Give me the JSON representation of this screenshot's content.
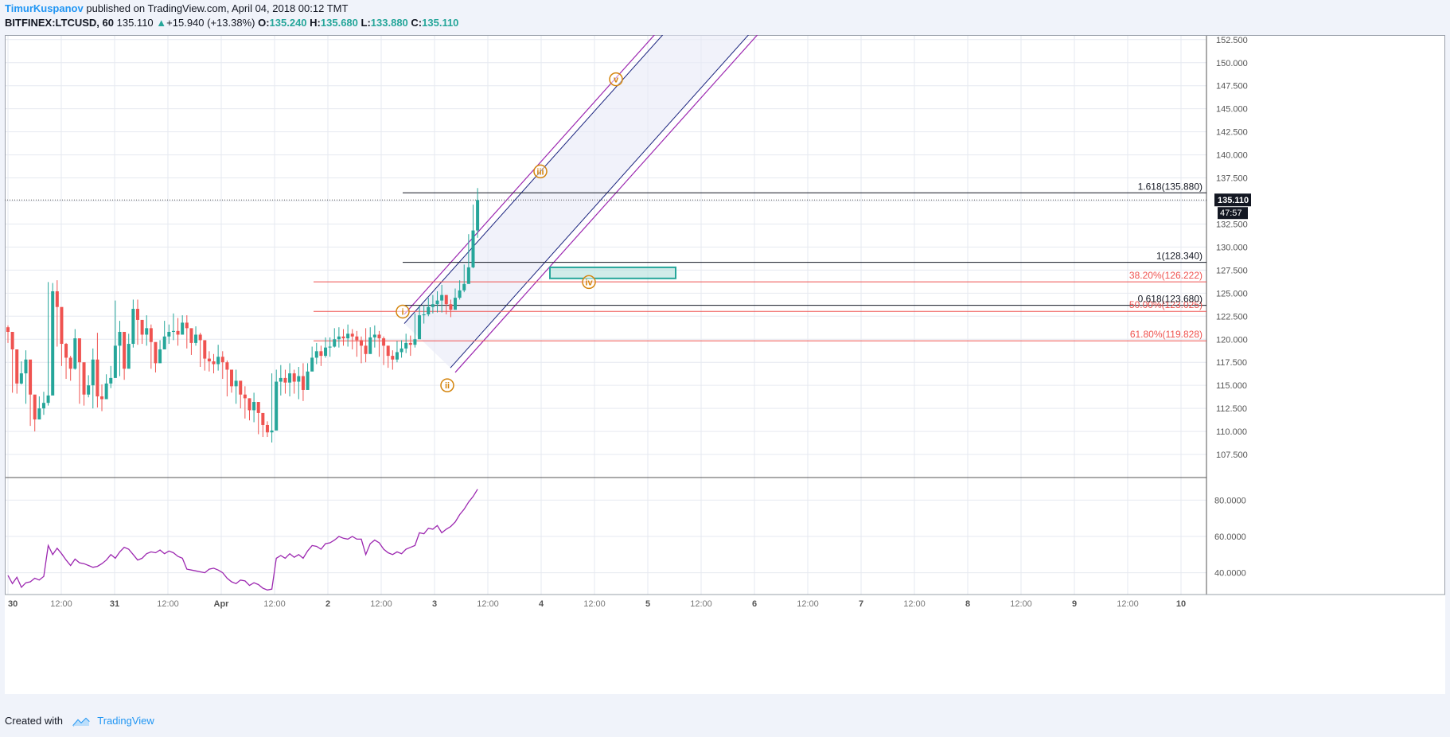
{
  "header": {
    "author": "TimurKuspanov",
    "published_text": "published on TradingView.com, April 04, 2018 00:12 TMT",
    "symbol_line": "BITFINEX:LTCUSD, 60",
    "last_price": "135.110",
    "change_arrow": "▲",
    "change": "+15.940 (+13.38%)",
    "open_label": "O:",
    "open": "135.240",
    "high_label": "H:",
    "high": "135.680",
    "low_label": "L:",
    "low": "133.880",
    "close_label": "C:",
    "close": "135.110"
  },
  "footer": {
    "created_with": "Created with",
    "brand": "TradingView"
  },
  "colors": {
    "up": "#26a69a",
    "down": "#ef5350",
    "wave_label": "#d4840c",
    "channel_outer": "#9c27b0",
    "channel_inner": "#1a237e",
    "fib_retracement": "#ef5350",
    "fib_extension": "#131722",
    "rsi": "#9c27b0",
    "zone": "#26a69a",
    "grid": "#e6e9f0",
    "brand": "#2196f3"
  },
  "chart_data": {
    "type": "candlestick",
    "symbol": "BITFINEX:LTCUSD",
    "interval": "60",
    "ylim": [
      105.0,
      153.0
    ],
    "y_ticks": [
      "152.500",
      "150.000",
      "147.500",
      "145.000",
      "142.500",
      "140.000",
      "137.500",
      "135.000",
      "132.500",
      "130.000",
      "127.500",
      "125.000",
      "122.500",
      "120.000",
      "117.500",
      "115.000",
      "112.500",
      "110.000",
      "107.500"
    ],
    "x_ticks": [
      "30",
      "12:00",
      "31",
      "12:00",
      "Apr",
      "12:00",
      "2",
      "12:00",
      "3",
      "12:00",
      "4",
      "12:00",
      "5",
      "12:00",
      "6",
      "12:00",
      "7",
      "12:00",
      "8",
      "12:00",
      "9",
      "12:00",
      "10"
    ],
    "price_label": "135.110",
    "countdown_label": "47:57",
    "closes": [
      120.8,
      118.9,
      115.2,
      116.3,
      117.8,
      114.0,
      111.3,
      112.5,
      113.1,
      113.9,
      125.2,
      123.5,
      119.5,
      118.0,
      116.8,
      120.1,
      117.5,
      114.0,
      115.0,
      117.8,
      113.8,
      113.5,
      115.2,
      115.8,
      119.3,
      120.8,
      116.8,
      119.5,
      123.3,
      122.1,
      120.5,
      121.2,
      119.7,
      117.4,
      118.9,
      120.3,
      120.8,
      120.9,
      120.5,
      121.8,
      121.2,
      119.6,
      120.5,
      119.9,
      117.9,
      117.6,
      117.3,
      118.1,
      117.5,
      116.7,
      114.9,
      115.5,
      114.0,
      113.6,
      112.3,
      113.2,
      112.0,
      110.7,
      109.9,
      110.1,
      115.4,
      115.8,
      115.3,
      116.3,
      115.4,
      116.0,
      114.5,
      116.5,
      118.0,
      118.7,
      118.2,
      119.1,
      119.2,
      120.0,
      120.3,
      120.1,
      120.6,
      120.3,
      119.9,
      119.3,
      118.4,
      120.2,
      120.5,
      120.1,
      119.3,
      118.2,
      117.8,
      118.6,
      119.0,
      119.6,
      119.4,
      120.0,
      122.6,
      122.7,
      123.5,
      123.8,
      124.2,
      124.8,
      123.8,
      123.2,
      124.5,
      125.3,
      126.0,
      127.8,
      131.8,
      135.1
    ],
    "highs": [
      121.5,
      119.6,
      117.0,
      117.6,
      118.8,
      115.1,
      112.6,
      113.8,
      114.3,
      126.2,
      126.1,
      126.4,
      120.9,
      119.6,
      118.2,
      121.1,
      118.6,
      115.0,
      116.1,
      119.0,
      120.7,
      115.1,
      116.2,
      117.1,
      124.2,
      122.0,
      118.1,
      120.6,
      124.3,
      124.3,
      122.1,
      122.6,
      121.6,
      119.1,
      119.9,
      122.0,
      121.6,
      122.8,
      122.3,
      122.6,
      122.6,
      120.6,
      121.4,
      120.7,
      118.9,
      118.7,
      118.4,
      119.4,
      118.7,
      117.7,
      116.0,
      116.7,
      115.2,
      114.9,
      113.6,
      114.2,
      113.1,
      111.8,
      111.1,
      116.3,
      116.7,
      117.2,
      116.7,
      117.4,
      116.7,
      117.0,
      117.4,
      117.4,
      119.2,
      119.6,
      119.3,
      120.2,
      120.2,
      121.2,
      121.3,
      121.1,
      121.6,
      121.1,
      120.9,
      120.3,
      121.2,
      121.3,
      121.5,
      120.9,
      120.3,
      119.3,
      118.8,
      119.8,
      119.9,
      120.6,
      120.4,
      122.8,
      123.6,
      123.7,
      124.5,
      124.8,
      125.2,
      125.9,
      124.8,
      124.3,
      125.5,
      126.4,
      128.1,
      131.4,
      134.6,
      136.4
    ],
    "lows": [
      119.6,
      114.2,
      114.1,
      115.1,
      113.0,
      110.6,
      110.0,
      111.4,
      111.8,
      112.8,
      118.2,
      119.2,
      117.1,
      115.7,
      115.5,
      116.7,
      113.0,
      112.8,
      113.7,
      112.5,
      112.6,
      112.2,
      113.9,
      114.7,
      118.1,
      116.0,
      115.6,
      118.4,
      119.1,
      119.4,
      119.5,
      119.3,
      116.8,
      116.4,
      117.8,
      119.4,
      119.5,
      119.9,
      119.3,
      120.6,
      119.0,
      118.3,
      119.3,
      117.0,
      116.6,
      116.5,
      116.3,
      116.6,
      115.7,
      113.8,
      114.2,
      113.0,
      112.5,
      111.4,
      111.2,
      111.0,
      109.7,
      109.4,
      109.4,
      108.8,
      113.2,
      113.9,
      114.1,
      113.8,
      114.1,
      113.5,
      113.3,
      115.3,
      116.9,
      117.3,
      117.1,
      118.0,
      118.1,
      119.1,
      119.1,
      119.3,
      119.2,
      118.9,
      118.1,
      117.4,
      117.5,
      119.2,
      119.1,
      118.1,
      117.2,
      116.9,
      116.7,
      117.5,
      118.0,
      118.5,
      118.2,
      119.1,
      121.5,
      121.7,
      122.5,
      122.8,
      122.9,
      122.9,
      122.7,
      122.4,
      123.5,
      124.3,
      125.1,
      126.4,
      127.7,
      131.0
    ],
    "rsi": {
      "ylim": [
        28.0,
        92.0
      ],
      "ticks": [
        "80.0000",
        "60.0000",
        "40.0000"
      ],
      "values": [
        38.5,
        34.0,
        37.5,
        32.0,
        34.5,
        35.0,
        37.0,
        36.0,
        38.0,
        55.0,
        50.0,
        53.5,
        50.5,
        47.0,
        44.0,
        47.5,
        45.5,
        45.0,
        44.0,
        43.0,
        43.5,
        45.0,
        47.0,
        50.0,
        48.0,
        51.5,
        54.0,
        53.0,
        50.0,
        47.0,
        48.0,
        50.5,
        51.5,
        51.0,
        52.5,
        50.5,
        52.0,
        51.0,
        49.0,
        48.0,
        42.0,
        41.5,
        41.0,
        40.5,
        40.0,
        42.0,
        42.5,
        41.5,
        40.0,
        37.0,
        35.0,
        34.0,
        36.0,
        35.5,
        33.0,
        34.5,
        33.5,
        31.5,
        30.5,
        31.0,
        48.0,
        49.5,
        48.0,
        50.5,
        48.5,
        50.0,
        48.0,
        52.0,
        55.0,
        54.5,
        53.0,
        56.0,
        56.5,
        58.0,
        60.0,
        59.0,
        58.5,
        60.0,
        58.5,
        58.5,
        50.0,
        56.0,
        58.0,
        56.5,
        53.0,
        51.0,
        50.0,
        51.5,
        50.5,
        53.0,
        54.0,
        55.0,
        62.0,
        61.5,
        64.5,
        64.0,
        66.0,
        62.0,
        64.0,
        65.5,
        68.0,
        72.0,
        75.0,
        79.0,
        82.0,
        86.0
      ]
    },
    "fib_retracement": [
      {
        "label": "38.20%(126.222)",
        "level": 126.222
      },
      {
        "label": "50.00%(123.025)",
        "level": 123.025
      },
      {
        "label": "61.80%(119.828)",
        "level": 119.828
      }
    ],
    "fib_extension": [
      {
        "label": "1.618(135.880)",
        "level": 135.88
      },
      {
        "label": "1(128.340)",
        "level": 128.34
      },
      {
        "label": "0.618(123.680)",
        "level": 123.68
      }
    ],
    "wave_labels": [
      "i",
      "ii",
      "iii",
      "iv",
      "v"
    ]
  }
}
